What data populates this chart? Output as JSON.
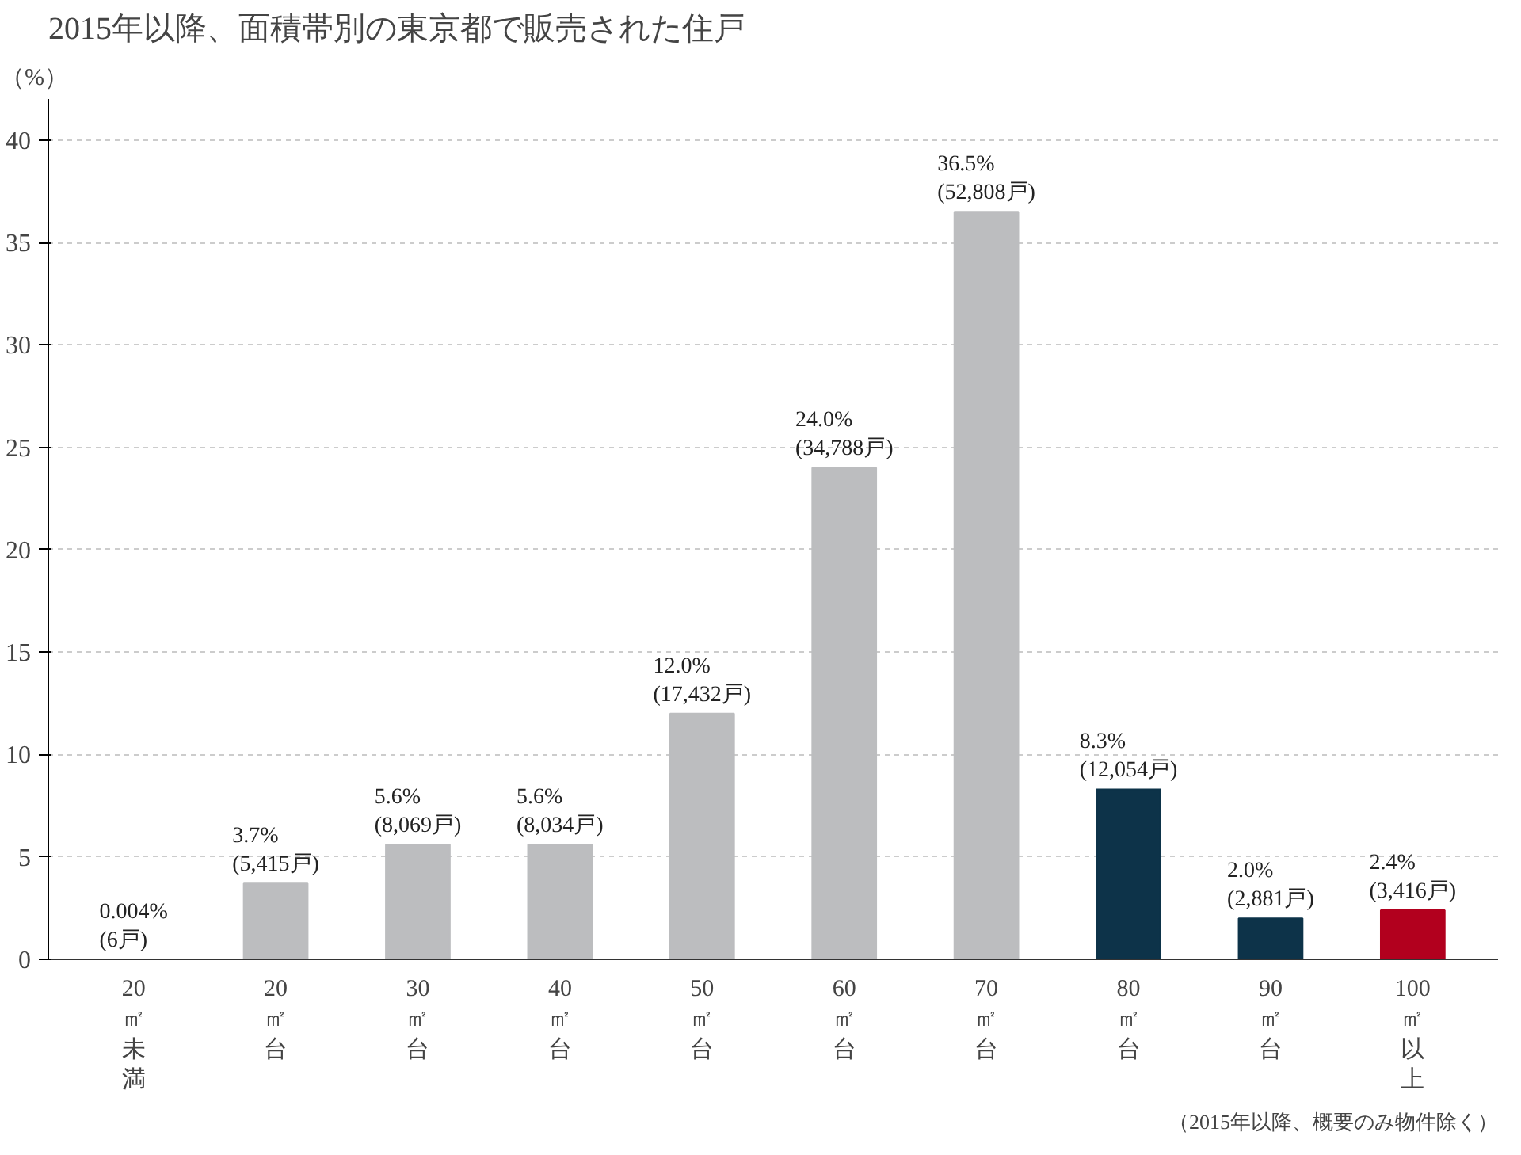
{
  "chart_data": {
    "type": "bar",
    "title": "2015年以降、面積帯別の東京都で販売された住戸",
    "ylabel": "（%）",
    "categories": [
      "20㎡未満",
      "20㎡台",
      "30㎡台",
      "40㎡台",
      "50㎡台",
      "60㎡台",
      "70㎡台",
      "80㎡台",
      "90㎡台",
      "100㎡以上"
    ],
    "values": [
      0.004,
      3.7,
      5.6,
      5.6,
      12.0,
      24.0,
      36.5,
      8.3,
      2.0,
      2.4
    ],
    "colors": [
      "#bcbdbf",
      "#bcbdbf",
      "#bcbdbf",
      "#bcbdbf",
      "#bcbdbf",
      "#bcbdbf",
      "#bcbdbf",
      "#0d3349",
      "#0d3349",
      "#b2001e"
    ],
    "value_labels": [
      "0.004%\n(6戸)",
      "3.7%\n(5,415戸)",
      "5.6%\n(8,069戸)",
      "5.6%\n(8,034戸)",
      "12.0%\n(17,432戸)",
      "24.0%\n(34,788戸)",
      "36.5%\n(52,808戸)",
      "8.3%\n(12,054戸)",
      "2.0%\n(2,881戸)",
      "2.4%\n(3,416戸)"
    ],
    "ylim": [
      0,
      42
    ],
    "yticks": [
      0,
      5,
      10,
      15,
      20,
      25,
      30,
      35,
      40
    ],
    "grid": "y",
    "annotations": [
      "（2015年以降、概要のみ物件除く）"
    ]
  }
}
